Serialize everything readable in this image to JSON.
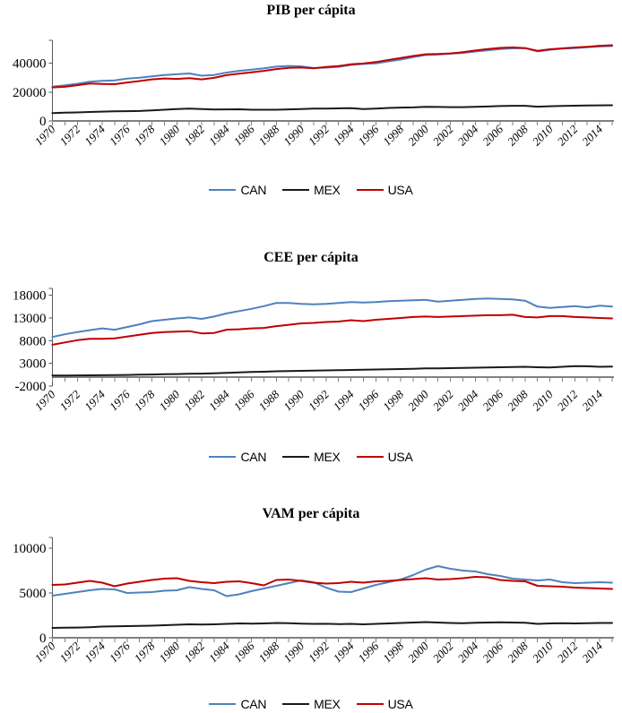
{
  "colors": {
    "can": "#4F81BD",
    "mex": "#1A1A1A",
    "usa": "#C00000",
    "axis": "#808080",
    "y_axis": "#595959"
  },
  "chart_data": [
    {
      "type": "line",
      "title": "PIB per cápita",
      "xlabel": "",
      "ylabel": "",
      "grid": false,
      "legend_position": "bottom",
      "ylim": [
        0,
        56000
      ],
      "yticks": [
        0,
        20000,
        40000
      ],
      "axis_cross_y": 0,
      "x": [
        1970,
        1971,
        1972,
        1973,
        1974,
        1975,
        1976,
        1977,
        1978,
        1979,
        1980,
        1981,
        1982,
        1983,
        1984,
        1985,
        1986,
        1987,
        1988,
        1989,
        1990,
        1991,
        1992,
        1993,
        1994,
        1995,
        1996,
        1997,
        1998,
        1999,
        2000,
        2001,
        2002,
        2003,
        2004,
        2005,
        2006,
        2007,
        2008,
        2009,
        2010,
        2011,
        2012,
        2013,
        2014,
        2015
      ],
      "x_tick_labels": [
        1970,
        1972,
        1974,
        1976,
        1978,
        1980,
        1982,
        1984,
        1986,
        1988,
        1990,
        1992,
        1994,
        1996,
        1998,
        2000,
        2002,
        2004,
        2006,
        2008,
        2010,
        2012,
        2014
      ],
      "series": [
        {
          "name": "CAN",
          "color": "#4F81BD",
          "values": [
            23800,
            24700,
            25800,
            27200,
            27900,
            28100,
            29400,
            30000,
            31000,
            31900,
            32400,
            33000,
            31400,
            31900,
            33600,
            34800,
            35600,
            36500,
            37700,
            38200,
            37900,
            36800,
            37000,
            37600,
            38900,
            39600,
            40000,
            41400,
            42600,
            44300,
            45800,
            46100,
            46700,
            47200,
            48200,
            49100,
            49900,
            50400,
            50600,
            48300,
            49400,
            50200,
            50600,
            51200,
            51700,
            52000
          ]
        },
        {
          "name": "MEX",
          "color": "#1A1A1A",
          "values": [
            5500,
            5700,
            5900,
            6200,
            6500,
            6700,
            6800,
            6900,
            7300,
            7800,
            8200,
            8600,
            8300,
            7900,
            8000,
            8100,
            7800,
            7800,
            7800,
            8000,
            8300,
            8500,
            8600,
            8700,
            8900,
            8300,
            8600,
            9000,
            9300,
            9400,
            9800,
            9700,
            9600,
            9600,
            9800,
            10000,
            10300,
            10500,
            10500,
            9900,
            10200,
            10400,
            10600,
            10700,
            10800,
            10900
          ]
        },
        {
          "name": "USA",
          "color": "#C00000",
          "values": [
            23300,
            23700,
            24800,
            26000,
            25700,
            25500,
            26700,
            27700,
            28900,
            29500,
            29200,
            29700,
            28900,
            29900,
            31800,
            32800,
            33800,
            34800,
            36000,
            36900,
            37100,
            36600,
            37500,
            38100,
            39300,
            39900,
            40900,
            42300,
            43700,
            45100,
            46300,
            46500,
            46900,
            47700,
            48900,
            49900,
            50700,
            51100,
            50600,
            48700,
            49800,
            50400,
            51000,
            51500,
            52200,
            52600
          ]
        }
      ]
    },
    {
      "type": "line",
      "title": "CEE per cápita",
      "xlabel": "",
      "ylabel": "",
      "grid": false,
      "legend_position": "bottom",
      "ylim": [
        -2000,
        19500
      ],
      "yticks": [
        -2000,
        3000,
        8000,
        13000,
        18000
      ],
      "axis_cross_y": 0,
      "x": [
        1970,
        1971,
        1972,
        1973,
        1974,
        1975,
        1976,
        1977,
        1978,
        1979,
        1980,
        1981,
        1982,
        1983,
        1984,
        1985,
        1986,
        1987,
        1988,
        1989,
        1990,
        1991,
        1992,
        1993,
        1994,
        1995,
        1996,
        1997,
        1998,
        1999,
        2000,
        2001,
        2002,
        2003,
        2004,
        2005,
        2006,
        2007,
        2008,
        2009,
        2010,
        2011,
        2012,
        2013,
        2014,
        2015
      ],
      "x_tick_labels": [
        1970,
        1972,
        1974,
        1976,
        1978,
        1980,
        1982,
        1984,
        1986,
        1988,
        1990,
        1992,
        1994,
        1996,
        1998,
        2000,
        2002,
        2004,
        2006,
        2008,
        2010,
        2012,
        2014
      ],
      "series": [
        {
          "name": "CAN",
          "color": "#4F81BD",
          "values": [
            8800,
            9400,
            9900,
            10300,
            10700,
            10400,
            11000,
            11600,
            12300,
            12600,
            12900,
            13100,
            12800,
            13300,
            14000,
            14500,
            15000,
            15600,
            16300,
            16300,
            16100,
            16000,
            16100,
            16300,
            16500,
            16400,
            16500,
            16700,
            16800,
            16900,
            17000,
            16600,
            16800,
            17000,
            17200,
            17300,
            17200,
            17100,
            16800,
            15500,
            15200,
            15400,
            15600,
            15300,
            15700,
            15500
          ]
        },
        {
          "name": "MEX",
          "color": "#1A1A1A",
          "values": [
            300,
            320,
            340,
            360,
            380,
            400,
            450,
            500,
            550,
            600,
            650,
            700,
            750,
            800,
            900,
            1000,
            1100,
            1150,
            1250,
            1300,
            1350,
            1400,
            1450,
            1500,
            1550,
            1600,
            1650,
            1700,
            1750,
            1800,
            1900,
            1900,
            1950,
            2000,
            2050,
            2100,
            2150,
            2200,
            2250,
            2150,
            2100,
            2250,
            2400,
            2350,
            2250,
            2300
          ]
        },
        {
          "name": "USA",
          "color": "#C00000",
          "values": [
            7100,
            7600,
            8100,
            8400,
            8400,
            8500,
            8900,
            9300,
            9700,
            9900,
            10000,
            10100,
            9600,
            9700,
            10400,
            10500,
            10700,
            10800,
            11200,
            11500,
            11800,
            11900,
            12100,
            12200,
            12500,
            12300,
            12600,
            12800,
            13000,
            13200,
            13300,
            13200,
            13300,
            13400,
            13500,
            13600,
            13600,
            13700,
            13200,
            13100,
            13400,
            13400,
            13200,
            13100,
            13000,
            12900
          ]
        }
      ]
    },
    {
      "type": "line",
      "title": "VAM per cápita",
      "xlabel": "",
      "ylabel": "",
      "grid": false,
      "legend_position": "bottom",
      "ylim": [
        0,
        11200
      ],
      "yticks": [
        0,
        5000,
        10000
      ],
      "axis_cross_y": 0,
      "x": [
        1970,
        1971,
        1972,
        1973,
        1974,
        1975,
        1976,
        1977,
        1978,
        1979,
        1980,
        1981,
        1982,
        1983,
        1984,
        1985,
        1986,
        1987,
        1988,
        1989,
        1990,
        1991,
        1992,
        1993,
        1994,
        1995,
        1996,
        1997,
        1998,
        1999,
        2000,
        2001,
        2002,
        2003,
        2004,
        2005,
        2006,
        2007,
        2008,
        2009,
        2010,
        2011,
        2012,
        2013,
        2014,
        2015
      ],
      "x_tick_labels": [
        1970,
        1972,
        1974,
        1976,
        1978,
        1980,
        1982,
        1984,
        1986,
        1988,
        1990,
        1992,
        1994,
        1996,
        1998,
        2000,
        2002,
        2004,
        2006,
        2008,
        2010,
        2012,
        2014
      ],
      "series": [
        {
          "name": "CAN",
          "color": "#4F81BD",
          "values": [
            4700,
            4900,
            5100,
            5300,
            5450,
            5400,
            5000,
            5050,
            5100,
            5250,
            5300,
            5650,
            5450,
            5300,
            4650,
            4850,
            5200,
            5500,
            5800,
            6100,
            6400,
            6200,
            5600,
            5150,
            5100,
            5500,
            5900,
            6200,
            6500,
            7000,
            7600,
            8000,
            7700,
            7500,
            7400,
            7100,
            6900,
            6600,
            6500,
            6400,
            6500,
            6200,
            6100,
            6150,
            6200,
            6150
          ]
        },
        {
          "name": "MEX",
          "color": "#1A1A1A",
          "values": [
            1100,
            1120,
            1140,
            1180,
            1250,
            1280,
            1300,
            1320,
            1350,
            1400,
            1450,
            1500,
            1480,
            1500,
            1550,
            1600,
            1580,
            1600,
            1650,
            1620,
            1580,
            1550,
            1560,
            1520,
            1550,
            1500,
            1550,
            1600,
            1650,
            1700,
            1750,
            1700,
            1650,
            1620,
            1680,
            1700,
            1720,
            1700,
            1680,
            1550,
            1600,
            1620,
            1600,
            1620,
            1650,
            1650
          ]
        },
        {
          "name": "USA",
          "color": "#C00000",
          "values": [
            5900,
            5950,
            6150,
            6350,
            6150,
            5750,
            6050,
            6250,
            6450,
            6600,
            6650,
            6350,
            6200,
            6100,
            6250,
            6300,
            6100,
            5850,
            6450,
            6500,
            6350,
            6150,
            6050,
            6100,
            6250,
            6150,
            6300,
            6350,
            6450,
            6550,
            6650,
            6500,
            6550,
            6650,
            6800,
            6750,
            6450,
            6350,
            6300,
            5800,
            5750,
            5700,
            5600,
            5550,
            5500,
            5450
          ]
        }
      ]
    }
  ]
}
